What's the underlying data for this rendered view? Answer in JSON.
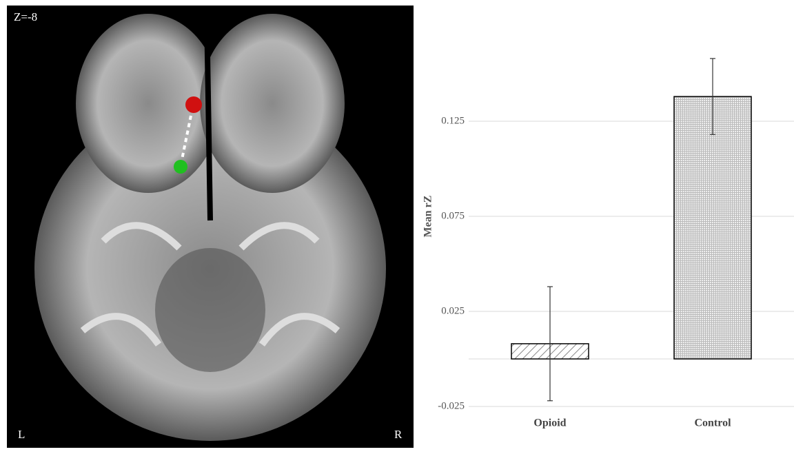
{
  "image": {
    "slice_label": "Z=-8",
    "left_label": "L",
    "right_label": "R"
  },
  "chart_data": {
    "type": "bar",
    "y_label": "Mean rZ",
    "categories": [
      "Opioid",
      "Control"
    ],
    "values": [
      0.008,
      0.138
    ],
    "errors": [
      0.03,
      0.02
    ],
    "ylim": [
      -0.025,
      0.175
    ],
    "yticks": [
      -0.025,
      0.025,
      0.075,
      0.125
    ],
    "grid": true
  }
}
